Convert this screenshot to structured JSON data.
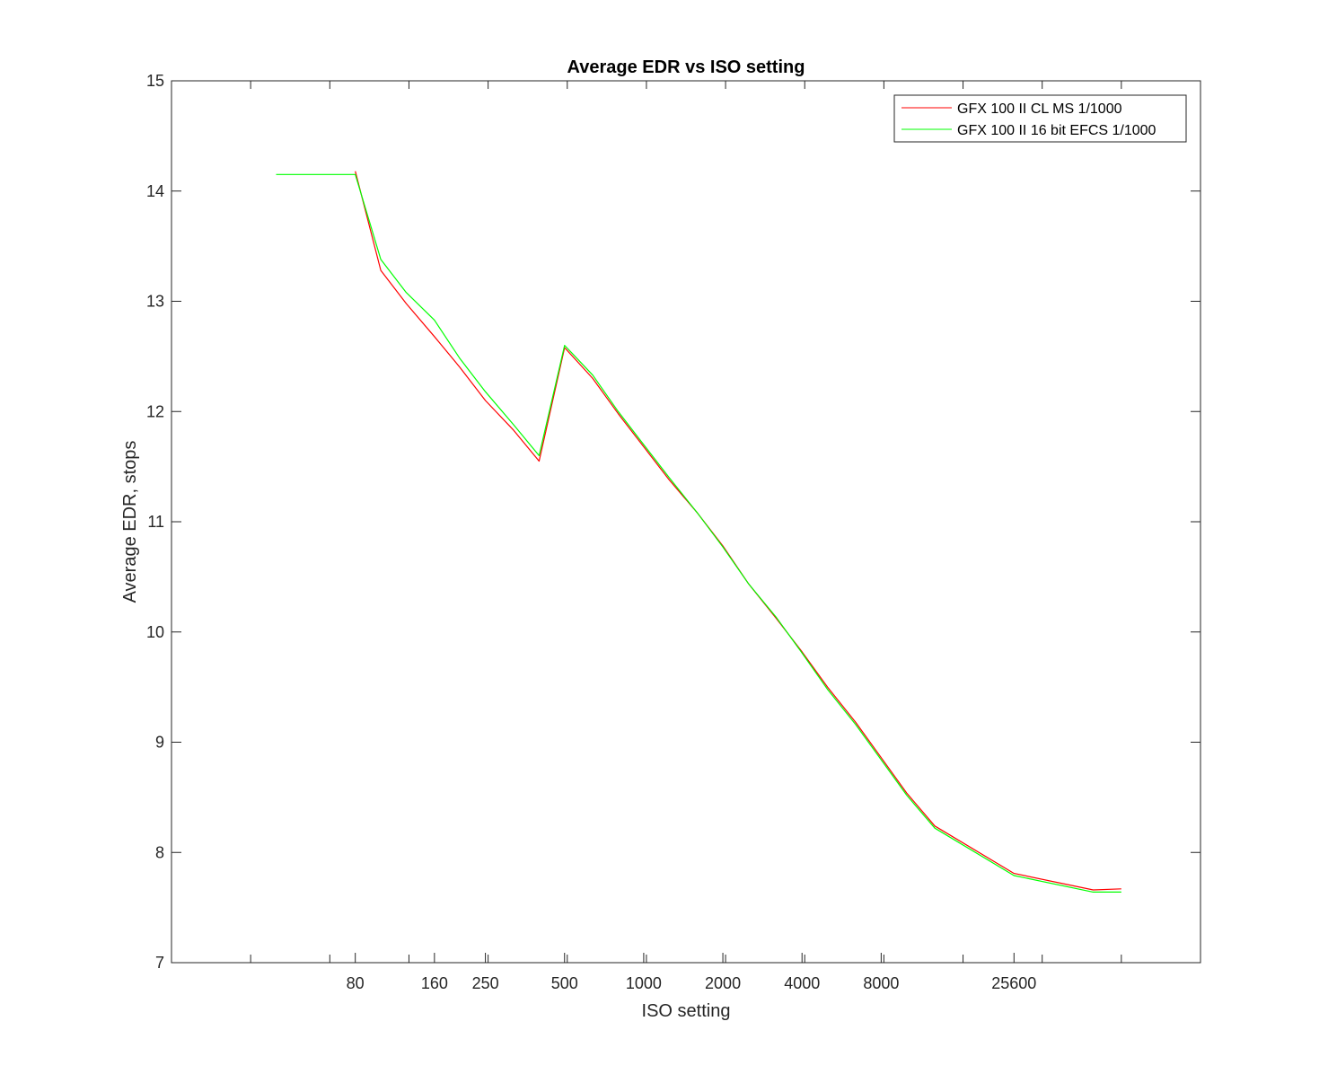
{
  "chart_data": {
    "type": "line",
    "title": "Average EDR vs ISO setting",
    "xlabel": "ISO setting",
    "ylabel": "Average EDR, stops",
    "xscale": "log",
    "xlim": [
      16,
      131072
    ],
    "ylim": [
      7,
      15
    ],
    "xticks": [
      80,
      160,
      250,
      500,
      1000,
      2000,
      4000,
      8000,
      25600
    ],
    "xtick_labels": [
      "80",
      "160",
      "250",
      "500",
      "1000",
      "2000",
      "4000",
      "8000",
      "25600"
    ],
    "yticks": [
      7,
      8,
      9,
      10,
      11,
      12,
      13,
      14,
      15
    ],
    "ytick_labels": [
      "7",
      "8",
      "9",
      "10",
      "11",
      "12",
      "13",
      "14",
      "15"
    ],
    "grid": false,
    "legend_position": "top-right",
    "series": [
      {
        "name": "GFX 100 II CL MS 1/1000",
        "color": "#ff0000",
        "x": [
          80,
          100,
          125,
          160,
          200,
          250,
          320,
          400,
          500,
          640,
          800,
          1000,
          1250,
          1600,
          2000,
          2500,
          3200,
          4000,
          5000,
          6400,
          8000,
          10000,
          12800,
          25600,
          51200,
          65536
        ],
        "y": [
          14.18,
          13.28,
          12.98,
          12.68,
          12.4,
          12.1,
          11.83,
          11.55,
          12.58,
          12.3,
          11.98,
          11.68,
          11.38,
          11.08,
          10.78,
          10.44,
          10.12,
          9.82,
          9.5,
          9.18,
          8.86,
          8.54,
          8.24,
          7.81,
          7.66,
          7.67
        ]
      },
      {
        "name": "GFX 100 II 16 bit EFCS 1/1000",
        "color": "#00ff00",
        "x": [
          40,
          50,
          64,
          80,
          100,
          125,
          160,
          200,
          250,
          320,
          400,
          500,
          640,
          800,
          1000,
          1250,
          1600,
          2000,
          2500,
          3200,
          4000,
          5000,
          6400,
          8000,
          10000,
          12800,
          25600,
          51200,
          65536
        ],
        "y": [
          14.15,
          14.15,
          14.15,
          14.15,
          13.38,
          13.08,
          12.83,
          12.48,
          12.18,
          11.88,
          11.6,
          12.6,
          12.33,
          12.0,
          11.7,
          11.4,
          11.08,
          10.77,
          10.44,
          10.13,
          9.81,
          9.48,
          9.16,
          8.84,
          8.52,
          8.22,
          7.79,
          7.64,
          7.64
        ]
      }
    ]
  }
}
